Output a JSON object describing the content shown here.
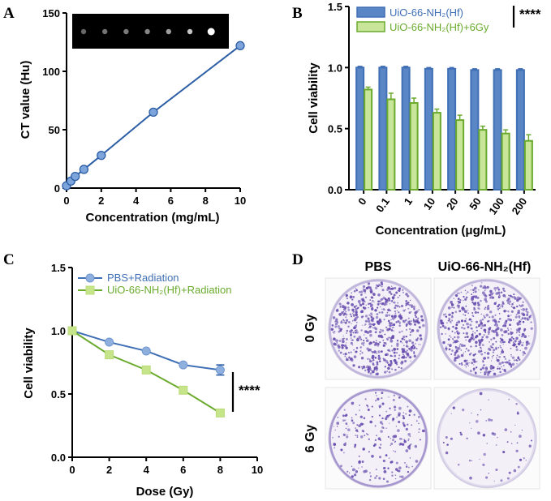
{
  "colors": {
    "blue": "#3f6fb5",
    "blue_light": "#5b86c5",
    "green": "#6aab2e",
    "green_light": "#c8e59a",
    "green_marker": "#c6e48a",
    "colony": "#6a4fb0"
  },
  "chart_data": [
    {
      "panel": "A",
      "type": "line",
      "xlabel": "Concentration (mg/mL)",
      "ylabel": "CT value (Hu)",
      "xlim": [
        0,
        10
      ],
      "ylim": [
        0,
        150
      ],
      "xticks": [
        0,
        2,
        4,
        6,
        8,
        10
      ],
      "yticks": [
        0,
        50,
        100,
        150
      ],
      "series": [
        {
          "name": "CT",
          "x": [
            0,
            0.25,
            0.5,
            1,
            2,
            5,
            10
          ],
          "y": [
            2,
            6,
            10,
            16,
            28,
            65,
            122
          ]
        }
      ],
      "inset_phantom_brightness": [
        0.22,
        0.28,
        0.32,
        0.38,
        0.5,
        0.7,
        1.0
      ]
    },
    {
      "panel": "B",
      "type": "bar",
      "xlabel": "Concentration (μg/mL)",
      "ylabel": "Cell viability",
      "ylim": [
        0,
        1.5
      ],
      "yticks": [
        "0.0",
        "0.5",
        "1.0",
        "1.5"
      ],
      "categories": [
        "0",
        "0.1",
        "1",
        "10",
        "20",
        "50",
        "100",
        "200"
      ],
      "series": [
        {
          "name": "UiO-66-NH₂(Hf)",
          "values": [
            1.0,
            1.0,
            1.0,
            0.99,
            0.99,
            0.98,
            0.98,
            0.98
          ],
          "errors": [
            0.01,
            0.01,
            0.01,
            0.01,
            0.01,
            0.01,
            0.01,
            0.01
          ]
        },
        {
          "name": "UiO-66-NH₂(Hf)+6Gy",
          "values": [
            0.82,
            0.74,
            0.71,
            0.63,
            0.57,
            0.49,
            0.46,
            0.4
          ],
          "errors": [
            0.02,
            0.05,
            0.04,
            0.03,
            0.04,
            0.03,
            0.03,
            0.05
          ]
        }
      ],
      "significance": "****",
      "legend_position": "top"
    },
    {
      "panel": "C",
      "type": "line",
      "xlabel": "Dose (Gy)",
      "ylabel": "Cell viability",
      "xlim": [
        0,
        10
      ],
      "ylim": [
        0,
        1.5
      ],
      "xticks": [
        "0",
        "2",
        "4",
        "6",
        "8",
        "10"
      ],
      "yticks": [
        "0.0",
        "0.5",
        "1.0",
        "1.5"
      ],
      "series": [
        {
          "name": "PBS+Radiation",
          "x": [
            0,
            2,
            4,
            6,
            8
          ],
          "y": [
            1.0,
            0.91,
            0.84,
            0.73,
            0.69
          ],
          "errors": [
            0,
            0,
            0,
            0,
            0.04
          ]
        },
        {
          "name": "UiO-66-NH₂(Hf)+Radiation",
          "x": [
            0,
            2,
            4,
            6,
            8
          ],
          "y": [
            1.0,
            0.81,
            0.69,
            0.53,
            0.35
          ],
          "errors": [
            0,
            0,
            0,
            0,
            0
          ]
        }
      ],
      "significance": "****",
      "legend_position": "top"
    }
  ],
  "panel_d": {
    "letter": "D",
    "col_labels": [
      "PBS",
      "UiO-66-NH₂(Hf)"
    ],
    "row_labels": [
      "0 Gy",
      "6 Gy"
    ],
    "colony_density": [
      [
        1.0,
        0.9
      ],
      [
        0.35,
        0.1
      ]
    ]
  },
  "panel_letters": [
    "A",
    "B",
    "C",
    "D"
  ]
}
